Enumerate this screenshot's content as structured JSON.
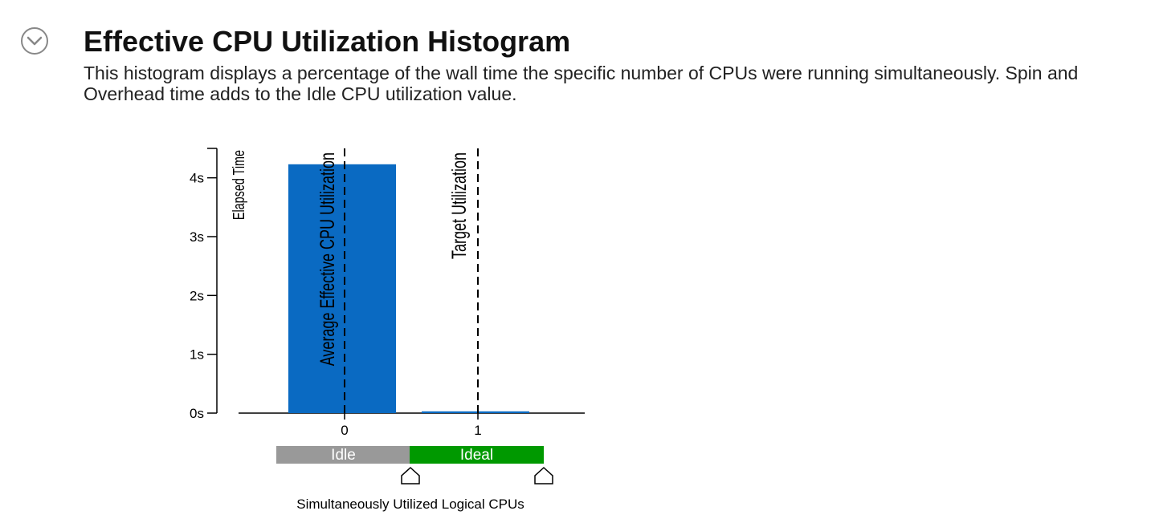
{
  "section": {
    "toggle_icon": "chevron-down-circle-icon",
    "title": "Effective CPU Utilization Histogram",
    "description": "This histogram displays a percentage of the wall time the specific number of CPUs were running simultaneously. Spin and Overhead time adds to the Idle CPU utilization value."
  },
  "chart_data": {
    "type": "bar",
    "ylabel": "Elapsed Time",
    "xlabel": "Simultaneously Utilized Logical CPUs",
    "categories": [
      "0",
      "1"
    ],
    "values": [
      4.23,
      0.03
    ],
    "ylim": [
      0,
      4.5
    ],
    "yticks": [
      0,
      1,
      2,
      3,
      4
    ],
    "ytick_labels": [
      "0s",
      "1s",
      "2s",
      "3s",
      "4s"
    ],
    "bar_color": "#0a6ac2",
    "reference_lines": [
      {
        "label": "Average Effective CPU Utilization",
        "x": 0
      },
      {
        "label": "Target Utilization",
        "x": 1
      }
    ],
    "utilization_bands": [
      {
        "label": "Idle",
        "from": -0.5,
        "to": 0.5,
        "color": "#999999"
      },
      {
        "label": "Ideal",
        "from": 0.5,
        "to": 1.5,
        "color": "#009900"
      }
    ],
    "grid": false
  }
}
